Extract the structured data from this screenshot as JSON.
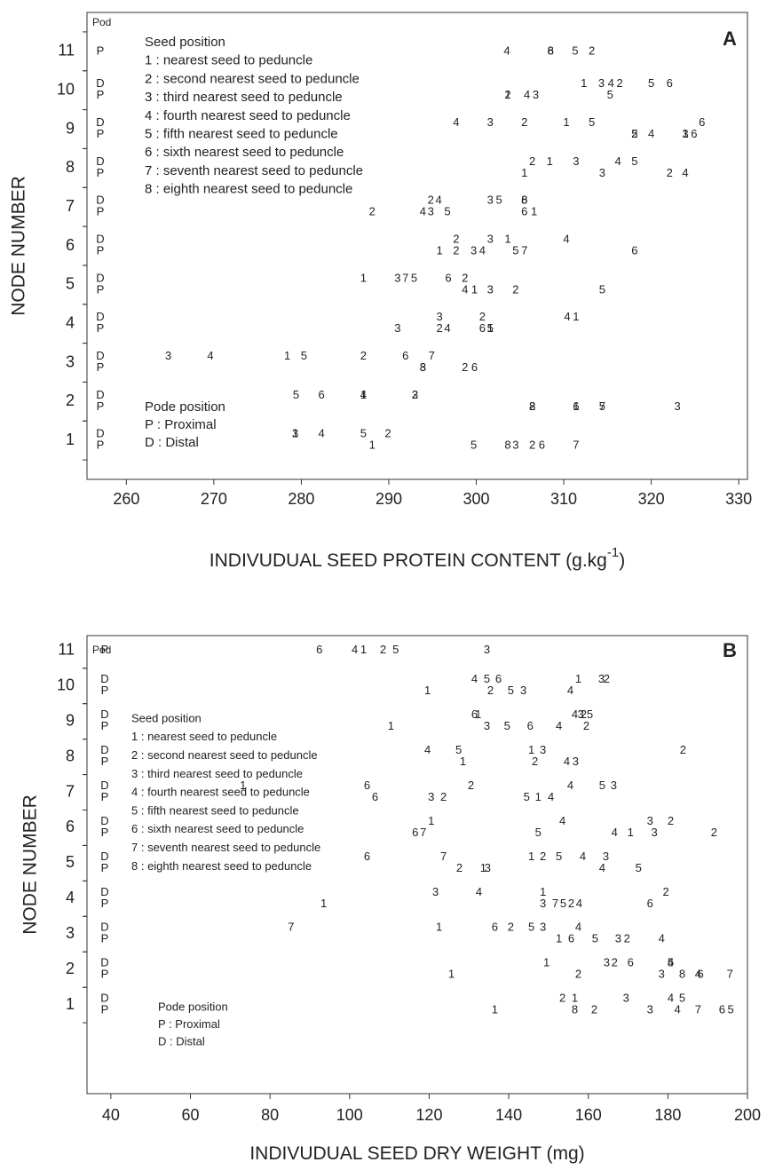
{
  "chart_data": [
    {
      "type": "scatter",
      "panel": "A",
      "pod_header": "Pod",
      "y_label": "NODE NUMBER",
      "x_label": {
        "text": "INDIVUDUAL SEED PROTEIN CONTENT (g.kg",
        "sup": "-1",
        "end": ")"
      },
      "xlim": [
        255.5,
        331
      ],
      "xticks": [
        260,
        270,
        280,
        290,
        300,
        310,
        320,
        330
      ],
      "ylim": [
        0,
        12
      ],
      "yticks": [
        1,
        2,
        3,
        4,
        5,
        6,
        7,
        8,
        9,
        10,
        11
      ],
      "seed_legend": {
        "title": "Seed position",
        "items": [
          "1 : nearest seed to peduncle",
          "2 : second nearest seed to peduncle",
          "3 : third nearest seed to peduncle",
          "4 : fourth nearest seed to peduncle",
          "5 : fifth nearest seed to peduncle",
          "6 : sixth nearest seed to peduncle",
          "7 : seventh nearest seed to peduncle",
          "8 : eighth nearest seed to peduncle"
        ]
      },
      "pod_legend": {
        "title": "Pode position",
        "items": [
          "P : Proximal",
          "D : Distal"
        ]
      },
      "pod_column": [
        {
          "node": 11,
          "pods": [
            "P"
          ]
        },
        {
          "node": 10,
          "pods": [
            "D",
            "P"
          ]
        },
        {
          "node": 9,
          "pods": [
            "D",
            "P"
          ]
        },
        {
          "node": 8,
          "pods": [
            "D",
            "P"
          ]
        },
        {
          "node": 7,
          "pods": [
            "D",
            "P"
          ]
        },
        {
          "node": 6,
          "pods": [
            "D",
            "P"
          ]
        },
        {
          "node": 5,
          "pods": [
            "D",
            "P"
          ]
        },
        {
          "node": 4,
          "pods": [
            "D",
            "P"
          ]
        },
        {
          "node": 3,
          "pods": [
            "D",
            "P"
          ]
        },
        {
          "node": 2,
          "pods": [
            "D",
            "P"
          ]
        },
        {
          "node": 1,
          "pods": [
            "D",
            "P"
          ]
        }
      ],
      "points": {
        "node": [
          11,
          11,
          11,
          11,
          11,
          10,
          10,
          10,
          10,
          10,
          10,
          10,
          10,
          10,
          10,
          10,
          9,
          9,
          9,
          9,
          9,
          9,
          9,
          9,
          9,
          9,
          9,
          9,
          8,
          8,
          8,
          8,
          8,
          8,
          8,
          8,
          8,
          7,
          7,
          7,
          7,
          7,
          7,
          7,
          7,
          7,
          7,
          7,
          7,
          6,
          6,
          6,
          6,
          6,
          6,
          6,
          6,
          6,
          6,
          6,
          5,
          5,
          5,
          5,
          5,
          5,
          5,
          5,
          5,
          5,
          5,
          4,
          4,
          4,
          4,
          4,
          4,
          4,
          4,
          4,
          4,
          3,
          3,
          3,
          3,
          3,
          3,
          3,
          3,
          3,
          3,
          3,
          2,
          2,
          2,
          2,
          2,
          2,
          2,
          2,
          2,
          2,
          2,
          2,
          2,
          1,
          1,
          1,
          1,
          1,
          1,
          1,
          1,
          1,
          1,
          1,
          1
        ],
        "pod": [
          "P",
          "P",
          "P",
          "P",
          "P",
          "D",
          "D",
          "D",
          "D",
          "D",
          "D",
          "P",
          "P",
          "P",
          "P",
          "P",
          "D",
          "D",
          "D",
          "D",
          "D",
          "D",
          "P",
          "P",
          "P",
          "P",
          "P",
          "P",
          "D",
          "D",
          "D",
          "D",
          "D",
          "P",
          "P",
          "P",
          "P",
          "D",
          "D",
          "D",
          "D",
          "D",
          "D",
          "P",
          "P",
          "P",
          "P",
          "P",
          "P",
          "D",
          "D",
          "D",
          "D",
          "P",
          "P",
          "P",
          "P",
          "P",
          "P",
          "P",
          "D",
          "D",
          "D",
          "D",
          "D",
          "D",
          "P",
          "P",
          "P",
          "P",
          "P",
          "D",
          "D",
          "D",
          "D",
          "P",
          "P",
          "P",
          "P",
          "P",
          "P",
          "D",
          "D",
          "D",
          "D",
          "D",
          "D",
          "D",
          "P",
          "P",
          "P",
          "P",
          "D",
          "D",
          "D",
          "D",
          "D",
          "D",
          "P",
          "P",
          "P",
          "P",
          "P",
          "P",
          "P",
          "D",
          "D",
          "D",
          "D",
          "D",
          "P",
          "P",
          "P",
          "P",
          "P",
          "P",
          "P"
        ],
        "seed": [
          4,
          8,
          6,
          5,
          2,
          1,
          3,
          4,
          2,
          5,
          6,
          1,
          2,
          4,
          3,
          5,
          4,
          3,
          2,
          1,
          5,
          6,
          2,
          5,
          4,
          1,
          3,
          6,
          2,
          1,
          3,
          4,
          5,
          1,
          3,
          2,
          4,
          2,
          4,
          3,
          5,
          6,
          8,
          2,
          4,
          3,
          5,
          6,
          1,
          2,
          3,
          1,
          4,
          1,
          2,
          3,
          4,
          5,
          7,
          6,
          1,
          3,
          7,
          5,
          6,
          2,
          4,
          1,
          3,
          2,
          5,
          3,
          2,
          4,
          1,
          3,
          2,
          4,
          6,
          1,
          5,
          3,
          4,
          1,
          5,
          2,
          6,
          7,
          3,
          8,
          2,
          6,
          5,
          6,
          1,
          4,
          2,
          3,
          2,
          8,
          1,
          6,
          5,
          7,
          3,
          1,
          3,
          4,
          5,
          2,
          1,
          5,
          8,
          3,
          2,
          6,
          7
        ],
        "x": [
          303.5,
          308.5,
          308.5,
          311.3,
          313.2,
          312.3,
          314.3,
          315.4,
          316.4,
          320,
          322.1,
          303.6,
          303.6,
          305.8,
          306.8,
          315.3,
          297.7,
          301.6,
          305.5,
          310.3,
          313.2,
          325.8,
          318.1,
          318.1,
          320,
          323.9,
          323.9,
          324.9,
          306.4,
          308.4,
          311.4,
          316.2,
          318.1,
          305.5,
          314.4,
          322.1,
          323.9,
          294.8,
          295.7,
          301.6,
          302.6,
          305.5,
          305.5,
          288.1,
          293.9,
          294.8,
          296.7,
          305.5,
          306.6,
          297.7,
          301.6,
          303.6,
          310.3,
          295.8,
          297.7,
          299.7,
          300.7,
          304.5,
          305.5,
          318.1,
          287.1,
          291,
          291.9,
          292.9,
          296.8,
          298.7,
          298.7,
          299.8,
          301.6,
          304.5,
          314.4,
          295.8,
          300.7,
          310.4,
          311.4,
          291,
          295.8,
          296.7,
          300.7,
          301.6,
          301.6,
          264.8,
          269.6,
          278.4,
          280.3,
          287.1,
          291.9,
          294.9,
          293.9,
          293.9,
          298.7,
          299.8,
          279.4,
          282.3,
          287.1,
          287.1,
          293,
          293,
          306.4,
          306.4,
          311.4,
          311.4,
          314.4,
          314.4,
          323,
          279.3,
          279.3,
          282.3,
          287.1,
          289.9,
          288.1,
          299.7,
          303.6,
          304.5,
          306.4,
          307.5,
          311.4
        ]
      }
    },
    {
      "type": "scatter",
      "panel": "B",
      "pod_header": "Pod",
      "y_label": "NODE NUMBER",
      "x_label": {
        "text": "INDIVUDUAL SEED DRY WEIGHT (mg)"
      },
      "xlim": [
        34,
        200
      ],
      "xticks": [
        40,
        60,
        80,
        100,
        120,
        140,
        160,
        180,
        200
      ],
      "ylim": [
        -1.5,
        11.42
      ],
      "yticks": [
        1,
        2,
        3,
        4,
        5,
        6,
        7,
        8,
        9,
        10,
        11
      ],
      "seed_legend": {
        "title": "Seed position",
        "items": [
          "1 : nearest seed to peduncle",
          "2 : second nearest seed to peduncle",
          "3 : third nearest seed to peduncle",
          "4 : fourth nearest seed to peduncle",
          "5 : fifth nearest seed to peduncle",
          "6 : sixth nearest seed to peduncle",
          "7 : seventh nearest seed to peduncle",
          "8 : eighth nearest seed to peduncle"
        ]
      },
      "pod_legend": {
        "title": "Pode position",
        "items": [
          "P : Proximal",
          "D : Distal"
        ]
      },
      "pod_column": [
        {
          "node": 11,
          "pods": [
            "P"
          ]
        },
        {
          "node": 10,
          "pods": [
            "D",
            "P"
          ]
        },
        {
          "node": 9,
          "pods": [
            "D",
            "P"
          ]
        },
        {
          "node": 8,
          "pods": [
            "D",
            "P"
          ]
        },
        {
          "node": 7,
          "pods": [
            "D",
            "P"
          ]
        },
        {
          "node": 6,
          "pods": [
            "D",
            "P"
          ]
        },
        {
          "node": 5,
          "pods": [
            "D",
            "P"
          ]
        },
        {
          "node": 4,
          "pods": [
            "D",
            "P"
          ]
        },
        {
          "node": 3,
          "pods": [
            "D",
            "P"
          ]
        },
        {
          "node": 2,
          "pods": [
            "D",
            "P"
          ]
        },
        {
          "node": 1,
          "pods": [
            "D",
            "P"
          ]
        }
      ],
      "points": {
        "node": [
          11,
          11,
          11,
          11,
          11,
          11,
          10,
          10,
          10,
          10,
          10,
          10,
          10,
          10,
          10,
          10,
          10,
          9,
          9,
          9,
          9,
          9,
          9,
          9,
          9,
          9,
          9,
          9,
          9,
          8,
          8,
          8,
          8,
          8,
          8,
          8,
          8,
          8,
          7,
          7,
          7,
          7,
          7,
          7,
          7,
          7,
          7,
          7,
          7,
          7,
          6,
          6,
          6,
          6,
          6,
          6,
          6,
          6,
          6,
          6,
          6,
          5,
          5,
          5,
          5,
          5,
          5,
          5,
          5,
          5,
          5,
          5,
          5,
          4,
          4,
          4,
          4,
          4,
          4,
          4,
          4,
          4,
          4,
          4,
          3,
          3,
          3,
          3,
          3,
          3,
          3,
          3,
          3,
          3,
          3,
          3,
          3,
          2,
          2,
          2,
          2,
          2,
          2,
          2,
          2,
          2,
          2,
          2,
          2,
          2,
          1,
          1,
          1,
          1,
          1,
          1,
          1,
          1,
          1,
          1,
          1,
          1,
          1
        ],
        "pod": [
          "P",
          "P",
          "P",
          "P",
          "P",
          "P",
          "D",
          "D",
          "D",
          "D",
          "D",
          "D",
          "P",
          "P",
          "P",
          "P",
          "P",
          "D",
          "D",
          "D",
          "D",
          "D",
          "D",
          "P",
          "P",
          "P",
          "P",
          "P",
          "P",
          "D",
          "D",
          "D",
          "D",
          "D",
          "P",
          "P",
          "P",
          "P",
          "D",
          "D",
          "D",
          "D",
          "D",
          "D",
          "P",
          "P",
          "P",
          "P",
          "P",
          "P",
          "D",
          "D",
          "D",
          "D",
          "P",
          "P",
          "P",
          "P",
          "P",
          "P",
          "P",
          "D",
          "D",
          "D",
          "D",
          "D",
          "D",
          "D",
          "P",
          "P",
          "P",
          "P",
          "P",
          "D",
          "D",
          "D",
          "D",
          "P",
          "P",
          "P",
          "P",
          "P",
          "P",
          "P",
          "D",
          "D",
          "D",
          "D",
          "D",
          "D",
          "D",
          "P",
          "P",
          "P",
          "P",
          "P",
          "P",
          "D",
          "D",
          "D",
          "D",
          "D",
          "D",
          "P",
          "P",
          "P",
          "P",
          "P",
          "P",
          "P",
          "D",
          "D",
          "D",
          "D",
          "D",
          "P",
          "P",
          "P",
          "P",
          "P",
          "P",
          "P",
          "P"
        ],
        "seed": [
          6,
          4,
          1,
          2,
          5,
          3,
          4,
          5,
          6,
          1,
          3,
          2,
          1,
          2,
          5,
          3,
          4,
          6,
          1,
          4,
          3,
          2,
          5,
          1,
          3,
          5,
          6,
          4,
          2,
          4,
          5,
          1,
          3,
          2,
          1,
          2,
          4,
          3,
          1,
          6,
          2,
          4,
          5,
          3,
          6,
          3,
          2,
          5,
          1,
          4,
          1,
          4,
          3,
          2,
          6,
          7,
          5,
          4,
          1,
          3,
          2,
          6,
          7,
          1,
          2,
          5,
          4,
          3,
          2,
          1,
          3,
          4,
          5,
          3,
          4,
          1,
          2,
          1,
          3,
          7,
          5,
          2,
          4,
          6,
          7,
          1,
          6,
          2,
          5,
          3,
          4,
          1,
          6,
          5,
          3,
          2,
          4,
          1,
          3,
          2,
          6,
          5,
          4,
          1,
          2,
          3,
          8,
          4,
          6,
          7,
          2,
          1,
          3,
          4,
          5,
          1,
          8,
          2,
          3,
          4,
          7,
          6,
          5
        ],
        "x": [
          92.4,
          101.3,
          103.5,
          108.4,
          111.6,
          134.5,
          131.4,
          134.5,
          137.4,
          157.5,
          163.3,
          164.6,
          119.6,
          135.4,
          140.5,
          143.7,
          155.5,
          131.4,
          132.3,
          156.6,
          158.1,
          158.8,
          160.4,
          110.4,
          134.5,
          139.6,
          145.4,
          152.6,
          159.5,
          119.6,
          127.4,
          145.7,
          148.6,
          183.8,
          128.5,
          146.6,
          154.6,
          156.8,
          73.2,
          104.4,
          130.5,
          155.5,
          163.5,
          166.4,
          106.4,
          120.5,
          123.6,
          144.5,
          147.4,
          150.6,
          120.5,
          153.5,
          175.5,
          180.7,
          116.5,
          118.5,
          147.4,
          166.6,
          170.6,
          176.6,
          191.6,
          104.4,
          123.6,
          145.7,
          148.6,
          152.6,
          158.6,
          164.4,
          127.6,
          133.6,
          134.7,
          163.5,
          172.6,
          121.6,
          132.5,
          148.6,
          179.5,
          93.5,
          148.6,
          151.7,
          153.7,
          155.7,
          157.7,
          175.5,
          85.3,
          122.5,
          136.5,
          140.5,
          145.7,
          148.6,
          157.5,
          152.6,
          155.7,
          161.7,
          167.5,
          169.7,
          178.4,
          149.5,
          164.6,
          166.6,
          170.6,
          180.7,
          180.7,
          125.6,
          157.5,
          178.4,
          183.6,
          187.6,
          188.2,
          195.6,
          153.5,
          156.6,
          169.5,
          180.7,
          183.6,
          136.5,
          156.6,
          161.5,
          175.5,
          182.4,
          187.6,
          193.6,
          195.8
        ]
      }
    }
  ]
}
